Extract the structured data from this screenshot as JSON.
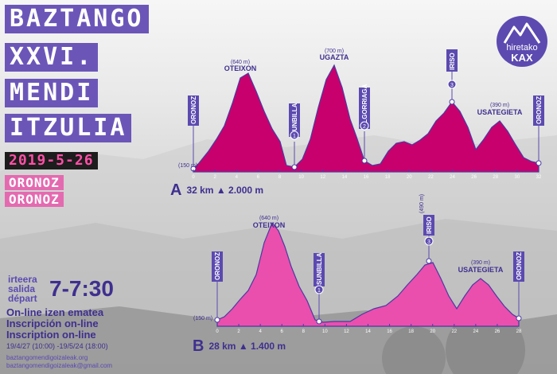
{
  "poster": {
    "title_lines": [
      "BAZTANGO",
      "XXVI.",
      "MENDI",
      "ITZULIA"
    ],
    "date": "2019-5-26",
    "place_lines": [
      "ORONOZ",
      "ORONOZ"
    ],
    "colors": {
      "title_bg": "#6b56b8",
      "route_a": "#c8006d",
      "route_b": "#ea4fae",
      "date_text": "#ff4fa6"
    }
  },
  "logo": {
    "line1": "hiretako",
    "line2": "KAX",
    "icon": "mountain-logo-icon"
  },
  "start": {
    "words": [
      "irteera",
      "salida",
      "départ"
    ],
    "time": "7-7:30"
  },
  "registration": {
    "lines": [
      "On-line izen ematea",
      "Inscripción on-line",
      "Inscription on-line"
    ],
    "dates": "19/4/27 (10:00) -19/5/24 (18:00)",
    "email": "baztangomendigoizaleak.org",
    "email2": "baztangomendigoizaleak@gmail.com"
  },
  "routes": {
    "a": {
      "letter": "A",
      "info": "32 km ▲ 2.000 m",
      "start_alt": "(150 m)",
      "place_labels": [
        "ORONOZ",
        "SUNBILLA",
        "ELGORRIAGA",
        "IRISO",
        "ORONOZ"
      ],
      "peaks": [
        {
          "name": "OTEIXON",
          "alt": "(640 m)"
        },
        {
          "name": "UGAZTA",
          "alt": "(700 m)"
        },
        {
          "name": "USATEGIETA",
          "alt": "(390 m)"
        }
      ],
      "markers": [
        "1",
        "2",
        "3"
      ],
      "ticks": [
        "0",
        "2",
        "4",
        "6",
        "8",
        "10",
        "12",
        "14",
        "16",
        "18",
        "20",
        "22",
        "24",
        "26",
        "28",
        "30",
        "32"
      ]
    },
    "b": {
      "letter": "B",
      "info": "28 km ▲ 1.400 m",
      "start_alt": "(150 m)",
      "place_labels": [
        "ORONOZ",
        "SUNBILLA",
        "ORONOZ"
      ],
      "peaks": [
        {
          "name": "OTEIXON",
          "alt": "(640 m)"
        },
        {
          "name": "IRISO",
          "alt": "(490 m)"
        },
        {
          "name": "USATEGIETA",
          "alt": "(390 m)"
        }
      ],
      "markers": [
        "1",
        "3"
      ],
      "ticks": [
        "0",
        "2",
        "4",
        "6",
        "8",
        "10",
        "12",
        "14",
        "16",
        "18",
        "20",
        "22",
        "24",
        "26",
        "28"
      ]
    }
  }
}
